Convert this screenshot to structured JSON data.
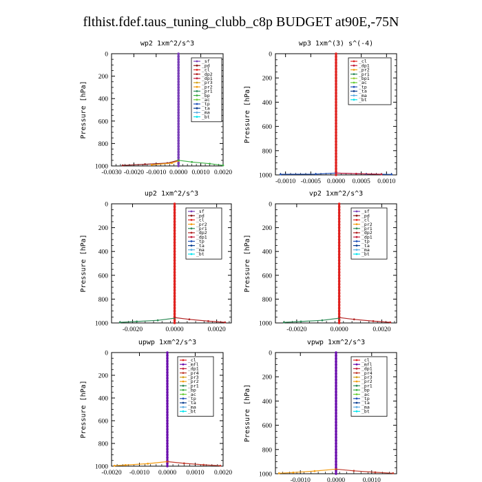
{
  "figure": {
    "title": "flthist.fdef.taus_tuning_clubb_c8p  BUDGET at90E,-75N"
  },
  "colors": {
    "_sf": "#7a3fb8",
    "_pd": "#8b1a1a",
    "_cl": "#e0221f",
    "_dp1": "#c41e3a",
    "_dp2": "#b22222",
    "_pr1": "#2e8b57",
    "_pr2": "#f39c12",
    "_pr3": "#d4a017",
    "_pr4": "#c0392b",
    "_bp": "#3cb043",
    "_bp1": "#9acd32",
    "_ac": "#66cc33",
    "_tp": "#1e4fb8",
    "_ta": "#0a3d91",
    "_ma": "#5dade2",
    "_bt": "#00e5ee",
    "_mfl": "#6a0dad"
  },
  "chart_data": [
    {
      "type": "line",
      "title": "wp2   1xm^2/s^3",
      "ylabel": "Pressure [hPa]",
      "xlim": [
        -0.003,
        0.002
      ],
      "ylim": [
        1000,
        0
      ],
      "xticks": [
        -0.003,
        -0.002,
        -0.001,
        0.0,
        0.001,
        0.002
      ],
      "xtick_labels": [
        "-0.0030",
        "-0.0020",
        "-0.0010",
        "0.0000",
        "0.0010",
        "0.0020"
      ],
      "yticks": [
        0,
        200,
        400,
        600,
        800,
        1000
      ],
      "ytick_labels": [
        "0",
        "200",
        "400",
        "600",
        "800",
        "1000"
      ],
      "legend": [
        "_sf",
        "_pd",
        "_cl",
        "_dp2",
        "_dp1",
        "_pr3",
        "_pr2",
        "_pr1",
        "_bp",
        "_ac",
        "_tp",
        "_ta",
        "_ma",
        "_bt"
      ],
      "series": [
        {
          "name": "_sf",
          "x": [
            0,
            0
          ],
          "y": [
            0,
            1000
          ]
        },
        {
          "name": "_pd",
          "x": [
            0,
            -0.0005,
            -0.0015,
            -0.0025
          ],
          "y": [
            950,
            975,
            985,
            995
          ]
        },
        {
          "name": "_pr2",
          "x": [
            0,
            -0.0003,
            -0.0012
          ],
          "y": [
            955,
            975,
            990
          ]
        },
        {
          "name": "_bp",
          "x": [
            0,
            0.0006,
            0.0014,
            0.002
          ],
          "y": [
            950,
            965,
            980,
            995
          ]
        }
      ]
    },
    {
      "type": "line",
      "title": "wp3   1xm^(3) s^(-4)",
      "ylabel": "Pressure [hPa]",
      "xlim": [
        -0.0012,
        0.0012
      ],
      "ylim": [
        1000,
        0
      ],
      "xticks": [
        -0.001,
        -0.0005,
        0.0,
        0.0005,
        0.001
      ],
      "xtick_labels": [
        "-0.0010",
        "-0.0005",
        "0.0000",
        "0.0005",
        "0.0010"
      ],
      "yticks": [
        0,
        200,
        400,
        600,
        800,
        1000
      ],
      "ytick_labels": [
        "0",
        "200",
        "400",
        "600",
        "800",
        "1000"
      ],
      "legend": [
        "_cl",
        "_dp1",
        "_pr2",
        "_pr1",
        "_bp1",
        "_ac",
        "_tp",
        "_ta",
        "_ma",
        "_bt"
      ],
      "series": [
        {
          "name": "_cl",
          "x": [
            0,
            0
          ],
          "y": [
            0,
            1000
          ]
        },
        {
          "name": "_tp",
          "x": [
            -0.0011,
            -0.0004,
            0,
            0.0006,
            0.0011
          ],
          "y": [
            995,
            993,
            985,
            992,
            996
          ]
        },
        {
          "name": "_dp1",
          "x": [
            0,
            0.0004,
            0.0009
          ],
          "y": [
            985,
            990,
            995
          ]
        }
      ]
    },
    {
      "type": "line",
      "title": "up2   1xm^2/s^3",
      "ylabel": "Pressure [hPa]",
      "xlim": [
        -0.003,
        0.0027
      ],
      "ylim": [
        1000,
        0
      ],
      "xticks": [
        -0.002,
        0.0,
        0.002
      ],
      "xtick_labels": [
        "-0.0020",
        "0.0000",
        "0.0020"
      ],
      "yticks": [
        0,
        200,
        400,
        600,
        800,
        1000
      ],
      "ytick_labels": [
        "0",
        "200",
        "400",
        "600",
        "800",
        "1000"
      ],
      "legend": [
        "_sf",
        "_pd",
        "_cl",
        "_pr2",
        "_pr1",
        "_dp2",
        "_dp1",
        "_tp",
        "_ta",
        "_ma",
        "_bt"
      ],
      "series": [
        {
          "name": "_cl",
          "x": [
            0,
            0
          ],
          "y": [
            0,
            1000
          ]
        },
        {
          "name": "_pr1",
          "x": [
            0,
            -0.0008,
            -0.0018,
            -0.0026
          ],
          "y": [
            960,
            978,
            988,
            995
          ]
        },
        {
          "name": "_dp2",
          "x": [
            0,
            0.0007,
            0.0016,
            0.0024
          ],
          "y": [
            955,
            970,
            985,
            995
          ]
        }
      ]
    },
    {
      "type": "line",
      "title": "vp2   1xm^2/s^3",
      "ylabel": "Pressure [hPa]",
      "xlim": [
        -0.003,
        0.0027
      ],
      "ylim": [
        1000,
        0
      ],
      "xticks": [
        -0.002,
        0.0,
        0.002
      ],
      "xtick_labels": [
        "-0.0020",
        "0.0000",
        "0.0020"
      ],
      "yticks": [
        0,
        200,
        400,
        600,
        800,
        1000
      ],
      "ytick_labels": [
        "0",
        "200",
        "400",
        "600",
        "800",
        "1000"
      ],
      "legend": [
        "_sf",
        "_pd",
        "_cl",
        "_pr2",
        "_pr1",
        "_dp2",
        "_dp1",
        "_tp",
        "_ta",
        "_ma",
        "_bt"
      ],
      "series": [
        {
          "name": "_cl",
          "x": [
            0,
            0
          ],
          "y": [
            0,
            1000
          ]
        },
        {
          "name": "_pr1",
          "x": [
            0,
            -0.0008,
            -0.0018,
            -0.0026
          ],
          "y": [
            960,
            978,
            988,
            995
          ]
        },
        {
          "name": "_dp2",
          "x": [
            0,
            0.0007,
            0.0016,
            0.0024
          ],
          "y": [
            955,
            970,
            985,
            995
          ]
        }
      ]
    },
    {
      "type": "line",
      "title": "upwp   1xm^2/s^3",
      "ylabel": "Pressure [hPa]",
      "xlim": [
        -0.002,
        0.002
      ],
      "ylim": [
        1000,
        0
      ],
      "xticks": [
        -0.002,
        -0.001,
        0.0,
        0.001,
        0.002
      ],
      "xtick_labels": [
        "-0.0020",
        "-0.0010",
        "0.0000",
        "0.0010",
        "0.0020"
      ],
      "yticks": [
        0,
        200,
        400,
        600,
        800,
        1000
      ],
      "ytick_labels": [
        "0",
        "200",
        "400",
        "600",
        "800",
        "1000"
      ],
      "legend": [
        "_cl",
        "_mfl",
        "_dp1",
        "_pr4",
        "_pr3",
        "_pr2",
        "_pr1",
        "_bp",
        "_ac",
        "_tp",
        "_ta",
        "_ma",
        "_bt"
      ],
      "series": [
        {
          "name": "_mfl",
          "x": [
            0,
            0
          ],
          "y": [
            0,
            1000
          ]
        },
        {
          "name": "_pr2",
          "x": [
            0,
            -0.0007,
            -0.0015,
            -0.0019
          ],
          "y": [
            960,
            978,
            990,
            996
          ]
        },
        {
          "name": "_pr4",
          "x": [
            0,
            0.0006,
            0.0013,
            0.0019
          ],
          "y": [
            960,
            975,
            988,
            996
          ]
        }
      ]
    },
    {
      "type": "line",
      "title": "vpwp   1xm^2/s^3",
      "ylabel": "Pressure [hPa]",
      "xlim": [
        -0.0017,
        0.0017
      ],
      "ylim": [
        1000,
        0
      ],
      "xticks": [
        -0.001,
        0.0,
        0.001
      ],
      "xtick_labels": [
        "-0.0010",
        "0.0000",
        "0.0010"
      ],
      "yticks": [
        0,
        200,
        400,
        600,
        800,
        1000
      ],
      "ytick_labels": [
        "0",
        "200",
        "400",
        "600",
        "800",
        "1000"
      ],
      "legend": [
        "_cl",
        "_mfl",
        "_dp1",
        "_pr4",
        "_pr3",
        "_pr2",
        "_pr1",
        "_bp",
        "_ac",
        "_tp",
        "_ta",
        "_ma",
        "_bt"
      ],
      "series": [
        {
          "name": "_mfl",
          "x": [
            0,
            0
          ],
          "y": [
            0,
            1000
          ]
        },
        {
          "name": "_pr2",
          "x": [
            0,
            -0.0006,
            -0.0012,
            -0.0016
          ],
          "y": [
            962,
            978,
            990,
            996
          ]
        },
        {
          "name": "_pr4",
          "x": [
            0,
            0.0005,
            0.0011,
            0.0016
          ],
          "y": [
            962,
            976,
            988,
            996
          ]
        }
      ]
    }
  ]
}
